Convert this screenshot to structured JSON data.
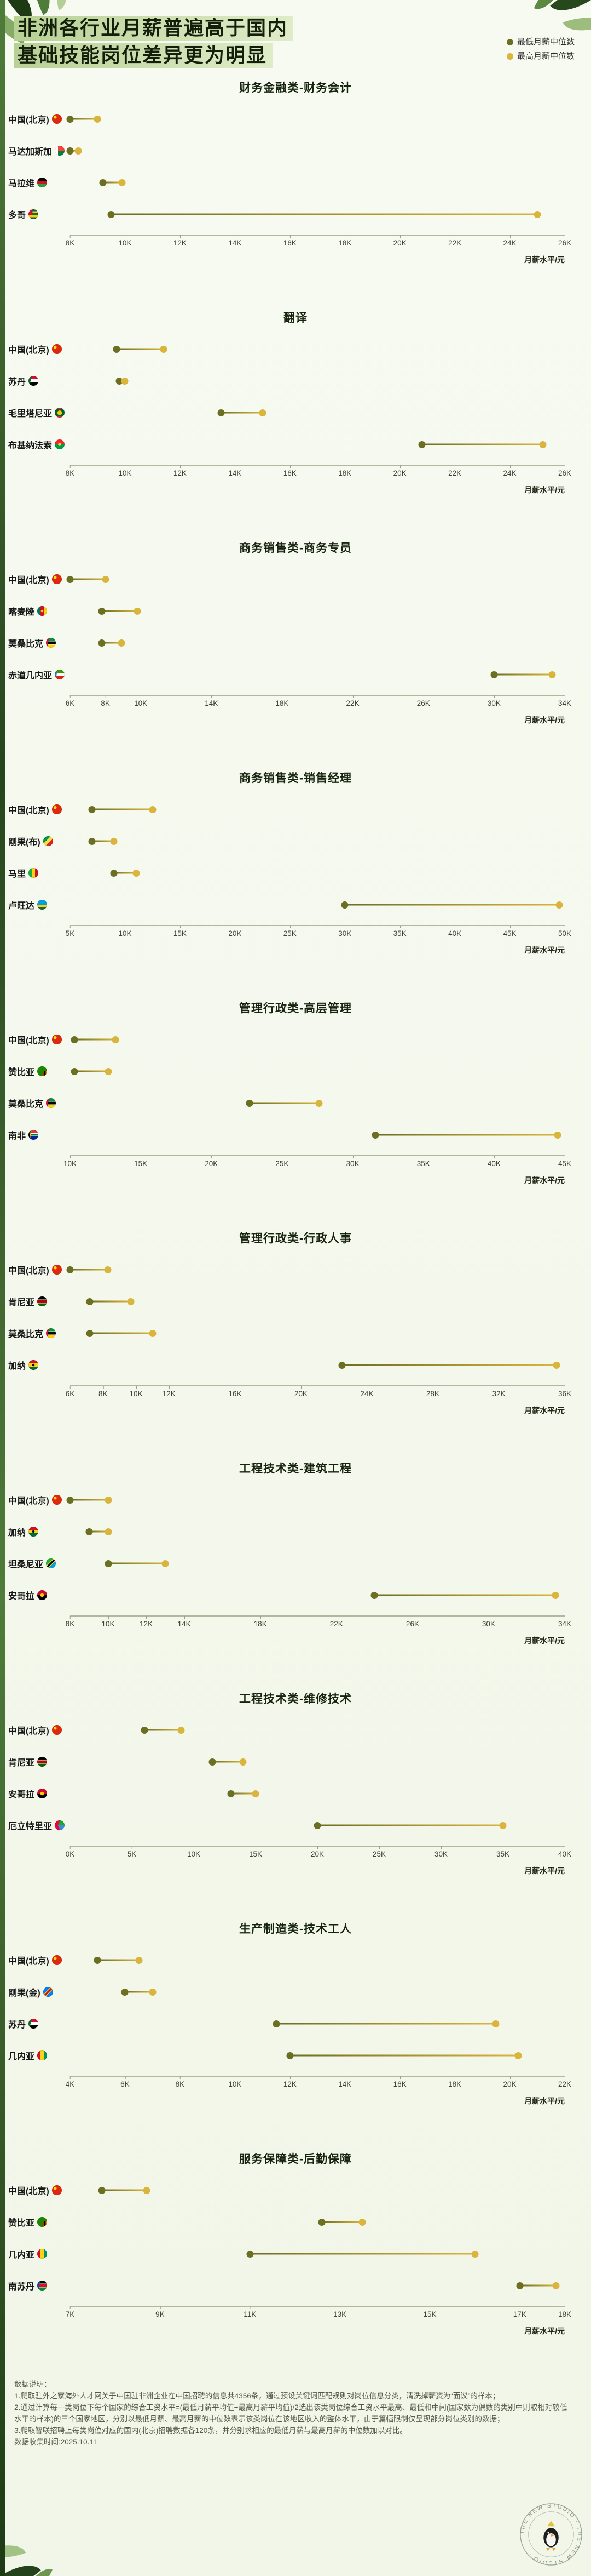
{
  "header": {
    "title_line1": "非洲各行业月薪普遍高于国内",
    "title_line2": "基础技能岗位差异更为明显",
    "legend": {
      "min_label": "最低月薪中位数",
      "max_label": "最高月薪中位数"
    }
  },
  "colors": {
    "min_dot": "#6c6e21",
    "max_dot": "#d9b53d",
    "accent_green": "#3f6b2e"
  },
  "chart_data": [
    {
      "type": "dumbbell",
      "title": "财务金融类-财务会计",
      "xlabel": "月薪水平/元",
      "axis_min": 8000,
      "axis_max": 26000,
      "ticks": [
        "8K",
        "10K",
        "12K",
        "14K",
        "16K",
        "18K",
        "20K",
        "22K",
        "24K",
        "26K"
      ],
      "rows": [
        {
          "country": "中国(北京)",
          "flag": "cn",
          "min": 8000,
          "max": 9000
        },
        {
          "country": "马达加斯加",
          "flag": "mg",
          "min": 8000,
          "max": 8300
        },
        {
          "country": "马拉维",
          "flag": "mw",
          "min": 9200,
          "max": 9900
        },
        {
          "country": "多哥",
          "flag": "tg",
          "min": 9500,
          "max": 25000
        }
      ]
    },
    {
      "type": "dumbbell",
      "title": "翻译",
      "xlabel": "月薪水平/元",
      "axis_min": 8000,
      "axis_max": 26000,
      "ticks": [
        "8K",
        "10K",
        "12K",
        "14K",
        "16K",
        "18K",
        "20K",
        "22K",
        "24K",
        "26K"
      ],
      "rows": [
        {
          "country": "中国(北京)",
          "flag": "cn",
          "min": 9700,
          "max": 11400
        },
        {
          "country": "苏丹",
          "flag": "sd",
          "min": 9800,
          "max": 10000
        },
        {
          "country": "毛里塔尼亚",
          "flag": "mr",
          "min": 13500,
          "max": 15000
        },
        {
          "country": "布基纳法索",
          "flag": "bf",
          "min": 20800,
          "max": 25200
        }
      ]
    },
    {
      "type": "dumbbell",
      "title": "商务销售类-商务专员",
      "xlabel": "月薪水平/元",
      "axis_min": 6000,
      "axis_max": 34000,
      "ticks": [
        "6K",
        "8K",
        "10K",
        "14K",
        "18K",
        "22K",
        "26K",
        "30K",
        "34K"
      ],
      "rows": [
        {
          "country": "中国(北京)",
          "flag": "cn",
          "min": 6000,
          "max": 8000
        },
        {
          "country": "喀麦隆",
          "flag": "cm",
          "min": 7800,
          "max": 9800
        },
        {
          "country": "莫桑比克",
          "flag": "mz",
          "min": 7800,
          "max": 8900
        },
        {
          "country": "赤道几内亚",
          "flag": "gq",
          "min": 30000,
          "max": 33300
        }
      ]
    },
    {
      "type": "dumbbell",
      "title": "商务销售类-销售经理",
      "xlabel": "月薪水平/元",
      "axis_min": 5000,
      "axis_max": 50000,
      "ticks": [
        "5K",
        "10K",
        "15K",
        "20K",
        "25K",
        "30K",
        "35K",
        "40K",
        "45K",
        "50K"
      ],
      "rows": [
        {
          "country": "中国(北京)",
          "flag": "cn",
          "min": 7000,
          "max": 12500
        },
        {
          "country": "刚果(布)",
          "flag": "cg",
          "min": 7000,
          "max": 9000
        },
        {
          "country": "马里",
          "flag": "ml",
          "min": 9000,
          "max": 11000
        },
        {
          "country": "卢旺达",
          "flag": "rw",
          "min": 30000,
          "max": 49500
        }
      ]
    },
    {
      "type": "dumbbell",
      "title": "管理行政类-高层管理",
      "xlabel": "月薪水平/元",
      "axis_min": 10000,
      "axis_max": 45000,
      "ticks": [
        "10K",
        "15K",
        "20K",
        "25K",
        "30K",
        "35K",
        "40K",
        "45K"
      ],
      "rows": [
        {
          "country": "中国(北京)",
          "flag": "cn",
          "min": 10300,
          "max": 13200
        },
        {
          "country": "赞比亚",
          "flag": "zm",
          "min": 10300,
          "max": 12700
        },
        {
          "country": "莫桑比克",
          "flag": "mz",
          "min": 22700,
          "max": 27600
        },
        {
          "country": "南非",
          "flag": "za",
          "min": 31600,
          "max": 44500
        }
      ]
    },
    {
      "type": "dumbbell",
      "title": "管理行政类-行政人事",
      "xlabel": "月薪水平/元",
      "axis_min": 6000,
      "axis_max": 36000,
      "ticks": [
        "6K",
        "8K",
        "10K",
        "12K",
        "16K",
        "20K",
        "24K",
        "28K",
        "32K",
        "36K"
      ],
      "rows": [
        {
          "country": "中国(北京)",
          "flag": "cn",
          "min": 6000,
          "max": 8300
        },
        {
          "country": "肯尼亚",
          "flag": "ke",
          "min": 7200,
          "max": 9700
        },
        {
          "country": "莫桑比克",
          "flag": "mz",
          "min": 7200,
          "max": 11000
        },
        {
          "country": "加纳",
          "flag": "gh",
          "min": 22500,
          "max": 35500
        }
      ]
    },
    {
      "type": "dumbbell",
      "title": "工程技术类-建筑工程",
      "xlabel": "月薪水平/元",
      "axis_min": 8000,
      "axis_max": 34000,
      "ticks": [
        "8K",
        "10K",
        "12K",
        "14K",
        "18K",
        "22K",
        "26K",
        "30K",
        "34K"
      ],
      "rows": [
        {
          "country": "中国(北京)",
          "flag": "cn",
          "min": 8000,
          "max": 10000
        },
        {
          "country": "加纳",
          "flag": "gh",
          "min": 9000,
          "max": 10000
        },
        {
          "country": "坦桑尼亚",
          "flag": "tz",
          "min": 10000,
          "max": 13000
        },
        {
          "country": "安哥拉",
          "flag": "ao",
          "min": 24000,
          "max": 33500
        }
      ]
    },
    {
      "type": "dumbbell",
      "title": "工程技术类-维修技术",
      "xlabel": "月薪水平/元",
      "axis_min": 0,
      "axis_max": 40000,
      "ticks": [
        "0K",
        "5K",
        "10K",
        "15K",
        "20K",
        "25K",
        "30K",
        "35K",
        "40K"
      ],
      "rows": [
        {
          "country": "中国(北京)",
          "flag": "cn",
          "min": 6000,
          "max": 9000
        },
        {
          "country": "肯尼亚",
          "flag": "ke",
          "min": 11500,
          "max": 14000
        },
        {
          "country": "安哥拉",
          "flag": "ao",
          "min": 13000,
          "max": 15000
        },
        {
          "country": "厄立特里亚",
          "flag": "er",
          "min": 20000,
          "max": 35000
        }
      ]
    },
    {
      "type": "dumbbell",
      "title": "生产制造类-技术工人",
      "xlabel": "月薪水平/元",
      "axis_min": 4000,
      "axis_max": 22000,
      "ticks": [
        "4K",
        "6K",
        "8K",
        "10K",
        "12K",
        "14K",
        "16K",
        "18K",
        "20K",
        "22K"
      ],
      "rows": [
        {
          "country": "中国(北京)",
          "flag": "cn",
          "min": 5000,
          "max": 6500
        },
        {
          "country": "刚果(金)",
          "flag": "cd",
          "min": 6000,
          "max": 7000
        },
        {
          "country": "苏丹",
          "flag": "sd",
          "min": 11500,
          "max": 19500
        },
        {
          "country": "几内亚",
          "flag": "gn",
          "min": 12000,
          "max": 20300
        }
      ]
    },
    {
      "type": "dumbbell",
      "title": "服务保障类-后勤保障",
      "xlabel": "月薪水平/元",
      "axis_min": 7000,
      "axis_max": 18000,
      "ticks": [
        "7K",
        "9K",
        "11K",
        "13K",
        "15K",
        "17K",
        "18K"
      ],
      "rows": [
        {
          "country": "中国(北京)",
          "flag": "cn",
          "min": 7700,
          "max": 8700
        },
        {
          "country": "赞比亚",
          "flag": "zm",
          "min": 12600,
          "max": 13500
        },
        {
          "country": "几内亚",
          "flag": "gn",
          "min": 11000,
          "max": 16000
        },
        {
          "country": "南苏丹",
          "flag": "ss",
          "min": 17000,
          "max": 17800
        }
      ]
    }
  ],
  "notes": {
    "title": "数据说明：",
    "items": [
      "1.爬取驻外之家海外人才网关于中国驻非洲企业在中国招聘的信息共4356条，通过预设关键词匹配规则对岗位信息分类，清洗掉薪资为“面议”的样本；",
      "2.通过计算每一类岗位下每个国家的综合工资水平=(最低月薪平均值+最高月薪平均值)/2选出该类岗位综合工资水平最高、最低和中间(国家数为偶数的类别中则取相对较低水平的样本)的三个国家地区，分别以最低月薪、最高月薪的中位数表示该类岗位在该地区收入的整体水平，由于篇幅限制仅呈现部分岗位类别的数据；",
      "3.爬取智联招聘上每类岗位对应的国内(北京)招聘数据各120条，并分别求相应的最低月薪与最高月薪的中位数加以对比。"
    ],
    "collected": "数据收集时间:2025.10.11"
  },
  "badge": {
    "text": "THE NEW STUDIO · THE NEW STUDIO ·"
  }
}
